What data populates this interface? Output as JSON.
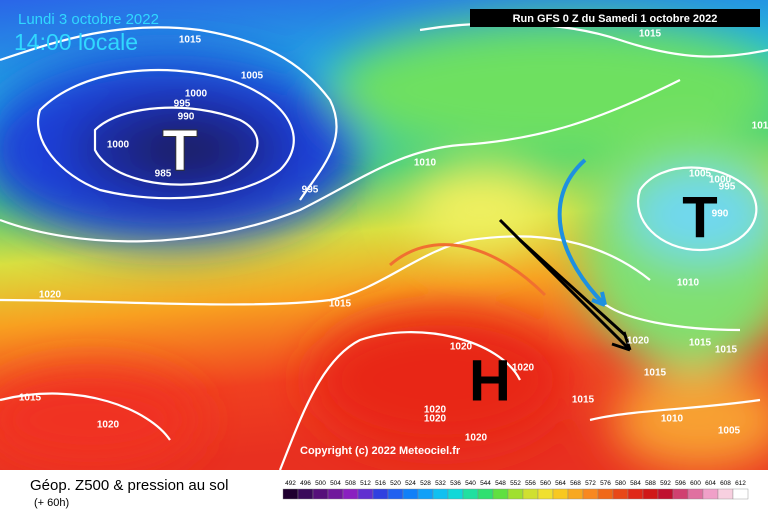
{
  "header": {
    "date": "Lundi 3 octobre 2022",
    "time": "14:00 locale",
    "run": "Run GFS 0 Z du Samedi 1 octobre 2022"
  },
  "copyright": "Copyright (c) 2022 Meteociel.fr",
  "footer": {
    "title": "Géop. Z500 & pression au sol",
    "subtitle": "(+ 60h)"
  },
  "scale": {
    "labels": [
      492,
      496,
      500,
      504,
      508,
      512,
      516,
      520,
      524,
      528,
      532,
      536,
      540,
      544,
      548,
      552,
      556,
      560,
      564,
      568,
      572,
      576,
      580,
      584,
      588,
      592,
      596,
      600,
      604,
      608,
      612
    ]
  },
  "centers": [
    "T",
    "T",
    "H"
  ],
  "isobars": [
    1015,
    1005,
    1000,
    995,
    990,
    1000,
    985,
    995,
    1010,
    1015,
    1005,
    1000,
    995,
    990,
    1010,
    1020,
    1015,
    1020,
    1020,
    1015,
    1015,
    1015,
    1020,
    1015,
    1020,
    1020,
    1020,
    1020,
    1010,
    1005,
    1015,
    101
  ]
}
